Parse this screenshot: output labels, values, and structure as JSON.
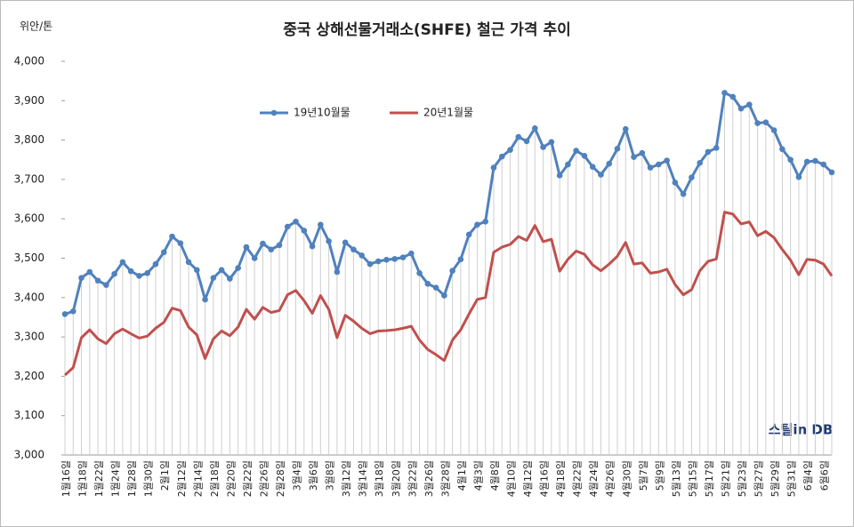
{
  "chart_data": {
    "type": "line",
    "title": "중국 상해선물거래소(SHFE) 철근 가격 추이",
    "y_label": "위안/톤",
    "watermark": "스틸in DB",
    "categories": [
      "1월16일",
      null,
      "1월18일",
      null,
      "1월22일",
      null,
      "1월24일",
      null,
      "1월28일",
      null,
      "1월30일",
      null,
      "2월1일",
      null,
      "2월12일",
      null,
      "2월14일",
      null,
      "2월18일",
      null,
      "2월20일",
      null,
      "2월22일",
      null,
      "2월26일",
      null,
      "2월28일",
      null,
      "3월4일",
      null,
      "3월6일",
      null,
      "3월8일",
      null,
      "3월12일",
      null,
      "3월14일",
      null,
      "3월18일",
      null,
      "3월20일",
      null,
      "3월22일",
      null,
      "3월26일",
      null,
      "3월28일",
      null,
      "4월1일",
      null,
      "4월3일",
      null,
      "4월8일",
      null,
      "4월10일",
      null,
      "4월12일",
      null,
      "4월16일",
      null,
      "4월18일",
      null,
      "4월22일",
      null,
      "4월24일",
      null,
      "4월26일",
      null,
      "4월30일",
      null,
      "5월7일",
      null,
      "5월9일",
      null,
      "5월13일",
      null,
      "5월15일",
      null,
      "5월17일",
      null,
      "5월21일",
      null,
      "5월23일",
      null,
      "5월27일",
      null,
      "5월29일",
      null,
      "5월31일",
      null,
      "6월4일",
      null,
      "6월6일",
      null
    ],
    "series": [
      {
        "name": "19년10월물",
        "color": "#4f81bd",
        "values": [
          3358,
          3365,
          3450,
          3465,
          3443,
          3432,
          3460,
          3490,
          3467,
          3455,
          3462,
          3485,
          3515,
          3555,
          3538,
          3490,
          3470,
          3395,
          3450,
          3470,
          3448,
          3475,
          3528,
          3500,
          3537,
          3522,
          3533,
          3580,
          3593,
          3570,
          3530,
          3585,
          3543,
          3465,
          3540,
          3522,
          3507,
          3485,
          3492,
          3496,
          3498,
          3502,
          3512,
          3462,
          3435,
          3425,
          3405,
          3468,
          3497,
          3560,
          3585,
          3593,
          3730,
          3758,
          3775,
          3808,
          3797,
          3830,
          3782,
          3795,
          3710,
          3738,
          3773,
          3760,
          3732,
          3712,
          3740,
          3778,
          3828,
          3757,
          3767,
          3730,
          3738,
          3748,
          3692,
          3663,
          3705,
          3742,
          3770,
          3780,
          3920,
          3910,
          3880,
          3890,
          3843,
          3845,
          3825,
          3777,
          3750,
          3706,
          3745,
          3747,
          3738,
          3718
        ]
      },
      {
        "name": "20년1월물",
        "color": "#c0504d",
        "values": [
          3203,
          3222,
          3298,
          3318,
          3295,
          3283,
          3308,
          3320,
          3308,
          3297,
          3302,
          3322,
          3337,
          3373,
          3367,
          3325,
          3305,
          3245,
          3295,
          3315,
          3303,
          3325,
          3370,
          3345,
          3375,
          3362,
          3367,
          3407,
          3418,
          3392,
          3360,
          3405,
          3370,
          3298,
          3355,
          3340,
          3322,
          3308,
          3315,
          3316,
          3318,
          3322,
          3327,
          3292,
          3268,
          3255,
          3240,
          3292,
          3318,
          3358,
          3395,
          3400,
          3515,
          3528,
          3535,
          3555,
          3545,
          3583,
          3542,
          3548,
          3467,
          3497,
          3518,
          3510,
          3483,
          3468,
          3485,
          3505,
          3540,
          3485,
          3488,
          3462,
          3465,
          3472,
          3433,
          3407,
          3420,
          3468,
          3492,
          3498,
          3617,
          3612,
          3587,
          3592,
          3557,
          3568,
          3552,
          3522,
          3495,
          3458,
          3497,
          3495,
          3485,
          3455
        ]
      }
    ],
    "ylim": [
      3000,
      4000
    ],
    "yticks": [
      {
        "value": 3000,
        "label": "3,000"
      },
      {
        "value": 3100,
        "label": "3,100"
      },
      {
        "value": 3200,
        "label": "3,200"
      },
      {
        "value": 3300,
        "label": "3,300"
      },
      {
        "value": 3400,
        "label": "3,400"
      },
      {
        "value": 3500,
        "label": "3,500"
      },
      {
        "value": 3600,
        "label": "3,600"
      },
      {
        "value": 3700,
        "label": "3,700"
      },
      {
        "value": 3800,
        "label": "3,800"
      },
      {
        "value": 3900,
        "label": "3,900"
      },
      {
        "value": 4000,
        "label": "4,000"
      }
    ],
    "drop_lines": true,
    "legend": "top"
  }
}
